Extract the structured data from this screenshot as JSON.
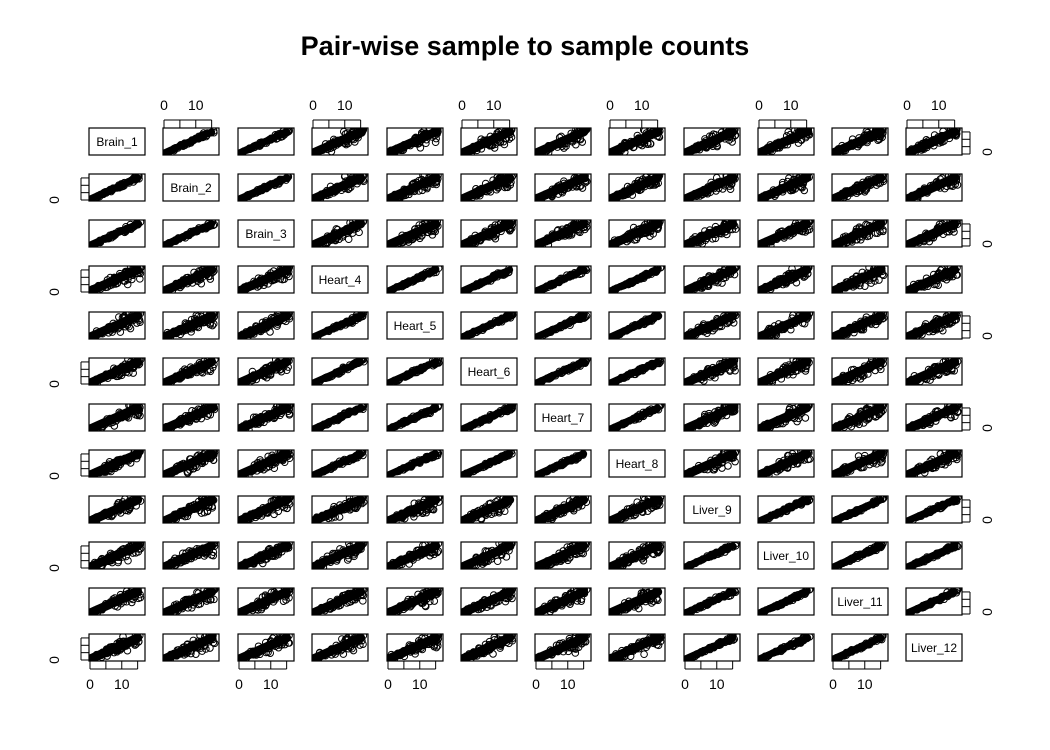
{
  "chart_data": {
    "type": "scatter",
    "subtype": "pairs-matrix",
    "title": "Pair-wise sample to sample counts",
    "variables": [
      "Brain_1",
      "Brain_2",
      "Brain_3",
      "Heart_4",
      "Heart_5",
      "Heart_6",
      "Heart_7",
      "Heart_8",
      "Liver_9",
      "Liver_10",
      "Liver_11",
      "Liver_12"
    ],
    "groups": [
      {
        "name": "Brain",
        "members": [
          "Brain_1",
          "Brain_2",
          "Brain_3"
        ]
      },
      {
        "name": "Heart",
        "members": [
          "Heart_4",
          "Heart_5",
          "Heart_6",
          "Heart_7",
          "Heart_8"
        ]
      },
      {
        "name": "Liver",
        "members": [
          "Liver_9",
          "Liver_10",
          "Liver_11",
          "Liver_12"
        ]
      }
    ],
    "axis_range": [
      0,
      17
    ],
    "tick_values": [
      0,
      5,
      10,
      15
    ],
    "tick_labels": [
      "0",
      "10"
    ],
    "marker": "open-circle",
    "marker_color": "#000000",
    "background": "#ffffff"
  }
}
